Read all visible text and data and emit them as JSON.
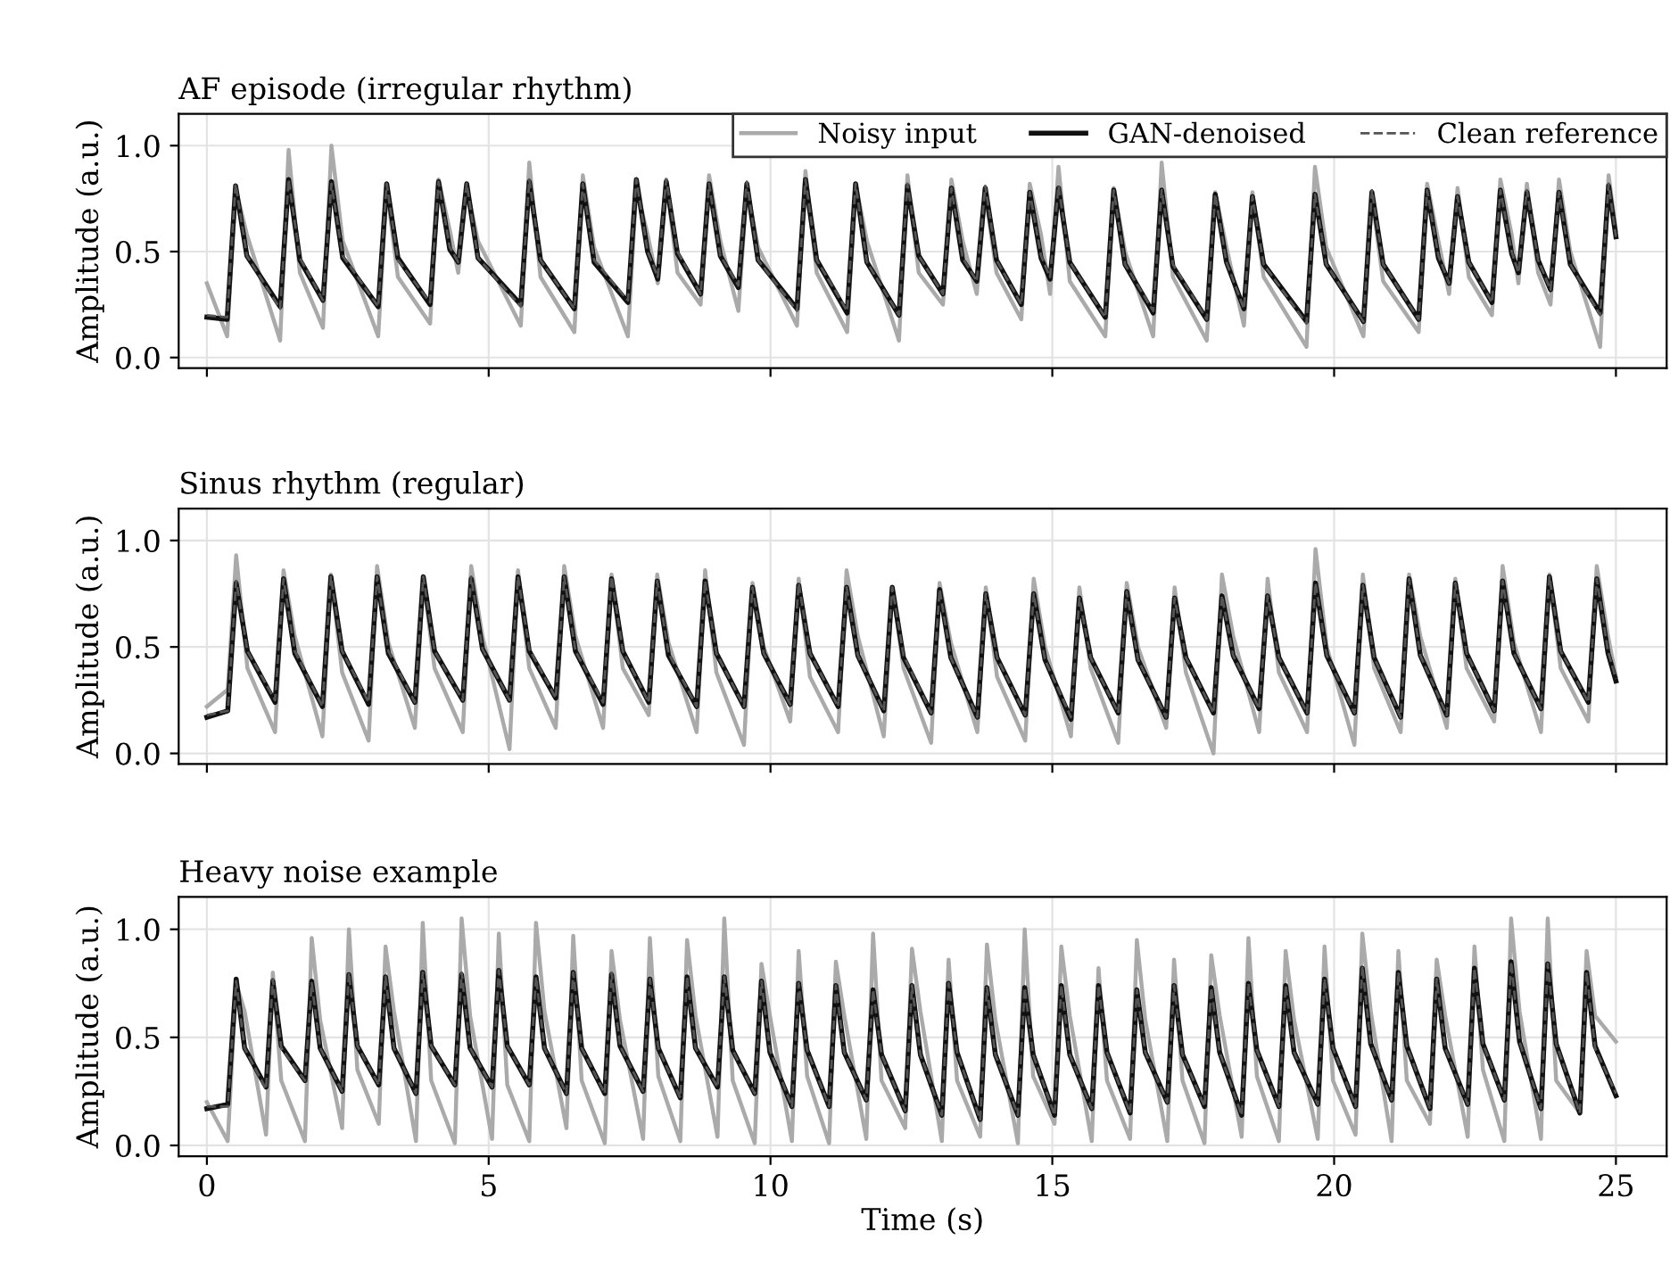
{
  "chart_data": [
    {
      "type": "line",
      "title": "AF episode (irregular rhythm)",
      "ylabel": "Amplitude (a.u.)",
      "xlim": [
        -0.5,
        25.9
      ],
      "ylim": [
        -0.05,
        1.15
      ],
      "xticks": [
        0,
        5,
        10,
        15,
        20,
        25
      ],
      "yticks": [
        {
          "value": 0,
          "label": "0.0"
        },
        {
          "value": 0.5,
          "label": "0.5"
        },
        {
          "value": 1,
          "label": "1.0"
        }
      ],
      "tick_labels": "y",
      "grid": true,
      "legend": "top right",
      "marker": "none",
      "x": [
        0,
        0.36,
        0.51,
        0.71,
        1.3,
        1.45,
        1.65,
        2.06,
        2.21,
        2.41,
        3.04,
        3.19,
        3.39,
        3.96,
        4.11,
        4.31,
        4.46,
        4.61,
        4.81,
        5.57,
        5.72,
        5.92,
        6.52,
        6.67,
        6.87,
        7.47,
        7.62,
        7.82,
        8.0,
        8.15,
        8.35,
        8.76,
        8.91,
        9.11,
        9.43,
        9.58,
        9.78,
        10.47,
        10.62,
        10.82,
        11.36,
        11.51,
        11.71,
        12.28,
        12.43,
        12.63,
        13.06,
        13.21,
        13.41,
        13.66,
        13.81,
        14.01,
        14.45,
        14.6,
        14.8,
        14.96,
        15.11,
        15.31,
        15.94,
        16.09,
        16.29,
        16.79,
        16.94,
        17.14,
        17.74,
        17.89,
        18.09,
        18.4,
        18.55,
        18.75,
        19.51,
        19.66,
        19.86,
        20.52,
        20.67,
        20.87,
        21.5,
        21.65,
        21.85,
        22.04,
        22.19,
        22.39,
        22.8,
        22.95,
        23.15,
        23.27,
        23.42,
        23.62,
        23.84,
        23.99,
        24.19,
        24.72,
        24.87,
        25.0
      ],
      "series": [
        {
          "name": "Noisy input",
          "color": "#aaaaaa",
          "line_style": "solid",
          "values": [
            0.35,
            0.1,
            0.8,
            0.58,
            0.08,
            0.98,
            0.4,
            0.14,
            1.0,
            0.55,
            0.1,
            0.8,
            0.38,
            0.16,
            0.84,
            0.6,
            0.4,
            0.8,
            0.55,
            0.15,
            0.92,
            0.38,
            0.12,
            0.86,
            0.52,
            0.1,
            0.8,
            0.58,
            0.35,
            0.84,
            0.4,
            0.25,
            0.86,
            0.55,
            0.22,
            0.8,
            0.52,
            0.15,
            0.88,
            0.4,
            0.12,
            0.82,
            0.55,
            0.08,
            0.86,
            0.4,
            0.25,
            0.84,
            0.55,
            0.3,
            0.78,
            0.4,
            0.18,
            0.82,
            0.58,
            0.3,
            0.9,
            0.36,
            0.1,
            0.8,
            0.5,
            0.1,
            0.92,
            0.38,
            0.08,
            0.78,
            0.52,
            0.15,
            0.78,
            0.38,
            0.05,
            0.9,
            0.52,
            0.1,
            0.76,
            0.36,
            0.12,
            0.82,
            0.55,
            0.3,
            0.8,
            0.38,
            0.2,
            0.84,
            0.58,
            0.35,
            0.82,
            0.4,
            0.25,
            0.84,
            0.5,
            0.05,
            0.86,
            0.6
          ]
        },
        {
          "name": "GAN-denoised",
          "color": "#111111",
          "line_style": "solid",
          "values": [
            0.19,
            0.18,
            0.81,
            0.48,
            0.24,
            0.84,
            0.46,
            0.27,
            0.83,
            0.47,
            0.24,
            0.82,
            0.47,
            0.25,
            0.83,
            0.51,
            0.45,
            0.82,
            0.47,
            0.25,
            0.83,
            0.46,
            0.23,
            0.82,
            0.45,
            0.26,
            0.84,
            0.5,
            0.37,
            0.83,
            0.49,
            0.3,
            0.82,
            0.48,
            0.33,
            0.82,
            0.46,
            0.23,
            0.84,
            0.46,
            0.21,
            0.82,
            0.45,
            0.2,
            0.81,
            0.48,
            0.3,
            0.8,
            0.46,
            0.36,
            0.8,
            0.46,
            0.25,
            0.78,
            0.47,
            0.37,
            0.8,
            0.45,
            0.19,
            0.79,
            0.44,
            0.21,
            0.79,
            0.43,
            0.18,
            0.77,
            0.45,
            0.23,
            0.76,
            0.44,
            0.17,
            0.77,
            0.44,
            0.17,
            0.78,
            0.44,
            0.18,
            0.79,
            0.47,
            0.35,
            0.76,
            0.45,
            0.26,
            0.79,
            0.49,
            0.4,
            0.78,
            0.46,
            0.32,
            0.78,
            0.44,
            0.21,
            0.81,
            0.57
          ]
        },
        {
          "name": "Clean reference",
          "color": "#555555",
          "line_style": "dashed",
          "values": [
            0.2,
            0.19,
            0.82,
            0.48,
            0.23,
            0.84,
            0.47,
            0.27,
            0.82,
            0.48,
            0.24,
            0.82,
            0.46,
            0.26,
            0.83,
            0.52,
            0.45,
            0.82,
            0.47,
            0.24,
            0.84,
            0.46,
            0.23,
            0.82,
            0.46,
            0.27,
            0.84,
            0.5,
            0.38,
            0.84,
            0.5,
            0.3,
            0.82,
            0.48,
            0.34,
            0.83,
            0.46,
            0.22,
            0.84,
            0.46,
            0.22,
            0.82,
            0.45,
            0.2,
            0.82,
            0.48,
            0.3,
            0.8,
            0.47,
            0.36,
            0.81,
            0.46,
            0.25,
            0.78,
            0.48,
            0.38,
            0.81,
            0.45,
            0.19,
            0.79,
            0.44,
            0.22,
            0.79,
            0.44,
            0.18,
            0.77,
            0.45,
            0.23,
            0.76,
            0.44,
            0.16,
            0.77,
            0.44,
            0.17,
            0.79,
            0.44,
            0.18,
            0.79,
            0.48,
            0.35,
            0.76,
            0.45,
            0.26,
            0.79,
            0.5,
            0.4,
            0.79,
            0.46,
            0.32,
            0.78,
            0.44,
            0.2,
            0.82,
            0.57
          ]
        }
      ]
    },
    {
      "type": "line",
      "title": "Sinus rhythm (regular)",
      "ylabel": "Amplitude (a.u.)",
      "xlim": [
        -0.5,
        25.9
      ],
      "ylim": [
        -0.05,
        1.15
      ],
      "xticks": [
        0,
        5,
        10,
        15,
        20,
        25
      ],
      "yticks": [
        {
          "value": 0,
          "label": "0.0"
        },
        {
          "value": 0.5,
          "label": "0.5"
        },
        {
          "value": 1,
          "label": "1.0"
        }
      ],
      "tick_labels": "y",
      "grid": true,
      "marker": "none",
      "x": [
        0,
        0.37,
        0.52,
        0.72,
        1.21,
        1.36,
        1.56,
        2.05,
        2.2,
        2.4,
        2.87,
        3.02,
        3.22,
        3.69,
        3.84,
        4.04,
        4.54,
        4.69,
        4.89,
        5.37,
        5.52,
        5.72,
        6.19,
        6.34,
        6.54,
        7.03,
        7.18,
        7.38,
        7.84,
        7.99,
        8.19,
        8.69,
        8.84,
        9.04,
        9.53,
        9.68,
        9.88,
        10.35,
        10.5,
        10.7,
        11.2,
        11.35,
        11.55,
        12.01,
        12.16,
        12.36,
        12.85,
        13.0,
        13.2,
        13.67,
        13.82,
        14.02,
        14.52,
        14.67,
        14.87,
        15.33,
        15.48,
        15.68,
        16.17,
        16.32,
        16.52,
        17.02,
        17.17,
        17.37,
        17.86,
        18.01,
        18.21,
        18.67,
        18.82,
        19.02,
        19.52,
        19.67,
        19.87,
        20.36,
        20.51,
        20.71,
        21.18,
        21.33,
        21.53,
        22.0,
        22.15,
        22.35,
        22.84,
        22.99,
        23.19,
        23.67,
        23.82,
        24.02,
        24.51,
        24.66,
        24.86,
        25.0
      ],
      "series": [
        {
          "color": "#aaaaaa",
          "line_style": "solid",
          "values": [
            0.22,
            0.3,
            0.93,
            0.4,
            0.1,
            0.86,
            0.55,
            0.08,
            0.84,
            0.38,
            0.06,
            0.88,
            0.52,
            0.12,
            0.82,
            0.4,
            0.1,
            0.88,
            0.55,
            0.02,
            0.86,
            0.4,
            0.12,
            0.88,
            0.55,
            0.12,
            0.84,
            0.4,
            0.18,
            0.84,
            0.52,
            0.1,
            0.86,
            0.38,
            0.04,
            0.8,
            0.5,
            0.15,
            0.82,
            0.36,
            0.1,
            0.86,
            0.55,
            0.08,
            0.78,
            0.4,
            0.05,
            0.8,
            0.52,
            0.1,
            0.78,
            0.36,
            0.06,
            0.82,
            0.5,
            0.08,
            0.78,
            0.4,
            0.05,
            0.8,
            0.5,
            0.12,
            0.78,
            0.38,
            0.0,
            0.84,
            0.55,
            0.1,
            0.82,
            0.38,
            0.1,
            0.96,
            0.5,
            0.04,
            0.84,
            0.4,
            0.1,
            0.84,
            0.55,
            0.12,
            0.82,
            0.4,
            0.15,
            0.88,
            0.52,
            0.1,
            0.84,
            0.4,
            0.15,
            0.88,
            0.55,
            0.36
          ]
        },
        {
          "color": "#111111",
          "line_style": "solid",
          "values": [
            0.17,
            0.2,
            0.8,
            0.48,
            0.24,
            0.82,
            0.47,
            0.22,
            0.83,
            0.48,
            0.23,
            0.83,
            0.47,
            0.24,
            0.83,
            0.48,
            0.25,
            0.82,
            0.49,
            0.25,
            0.83,
            0.48,
            0.26,
            0.83,
            0.48,
            0.23,
            0.82,
            0.48,
            0.24,
            0.81,
            0.46,
            0.22,
            0.81,
            0.47,
            0.22,
            0.78,
            0.47,
            0.23,
            0.79,
            0.47,
            0.22,
            0.78,
            0.46,
            0.2,
            0.78,
            0.45,
            0.19,
            0.77,
            0.45,
            0.17,
            0.75,
            0.45,
            0.18,
            0.75,
            0.44,
            0.16,
            0.73,
            0.45,
            0.19,
            0.76,
            0.44,
            0.17,
            0.73,
            0.45,
            0.19,
            0.74,
            0.46,
            0.21,
            0.74,
            0.45,
            0.19,
            0.8,
            0.46,
            0.19,
            0.79,
            0.45,
            0.17,
            0.82,
            0.46,
            0.18,
            0.8,
            0.47,
            0.2,
            0.81,
            0.47,
            0.21,
            0.83,
            0.48,
            0.24,
            0.82,
            0.47,
            0.34
          ]
        },
        {
          "color": "#555555",
          "line_style": "dashed",
          "values": [
            0.18,
            0.2,
            0.81,
            0.48,
            0.25,
            0.82,
            0.48,
            0.22,
            0.83,
            0.48,
            0.24,
            0.83,
            0.48,
            0.24,
            0.83,
            0.48,
            0.25,
            0.83,
            0.49,
            0.25,
            0.83,
            0.49,
            0.26,
            0.83,
            0.48,
            0.24,
            0.83,
            0.48,
            0.24,
            0.81,
            0.47,
            0.22,
            0.81,
            0.47,
            0.22,
            0.78,
            0.47,
            0.23,
            0.8,
            0.47,
            0.22,
            0.78,
            0.46,
            0.2,
            0.78,
            0.46,
            0.19,
            0.77,
            0.45,
            0.17,
            0.75,
            0.45,
            0.18,
            0.75,
            0.44,
            0.17,
            0.73,
            0.45,
            0.19,
            0.76,
            0.44,
            0.17,
            0.73,
            0.45,
            0.19,
            0.74,
            0.46,
            0.21,
            0.74,
            0.45,
            0.19,
            0.8,
            0.46,
            0.19,
            0.79,
            0.45,
            0.17,
            0.82,
            0.46,
            0.18,
            0.8,
            0.47,
            0.2,
            0.81,
            0.47,
            0.21,
            0.83,
            0.48,
            0.24,
            0.82,
            0.48,
            0.35
          ]
        }
      ]
    },
    {
      "type": "line",
      "title": "Heavy noise example",
      "xlabel": "Time (s)",
      "ylabel": "Amplitude (a.u.)",
      "xlim": [
        -0.5,
        25.9
      ],
      "ylim": [
        -0.05,
        1.15
      ],
      "xticks": [
        0,
        5,
        10,
        15,
        20,
        25
      ],
      "yticks": [
        {
          "value": 0,
          "label": "0.0"
        },
        {
          "value": 0.5,
          "label": "0.5"
        },
        {
          "value": 1,
          "label": "1.0"
        }
      ],
      "grid": true,
      "marker": "none",
      "x": [
        0,
        0.37,
        0.52,
        0.67,
        1.05,
        1.17,
        1.32,
        1.74,
        1.86,
        2.01,
        2.4,
        2.52,
        2.67,
        3.05,
        3.17,
        3.32,
        3.71,
        3.83,
        3.98,
        4.4,
        4.52,
        4.67,
        5.06,
        5.18,
        5.33,
        5.72,
        5.84,
        5.99,
        6.38,
        6.5,
        6.65,
        7.06,
        7.18,
        7.33,
        7.74,
        7.86,
        8.01,
        8.4,
        8.52,
        8.67,
        9.06,
        9.18,
        9.33,
        9.72,
        9.84,
        9.99,
        10.38,
        10.5,
        10.65,
        11.04,
        11.16,
        11.31,
        11.7,
        11.82,
        11.97,
        12.39,
        12.51,
        12.66,
        13.04,
        13.16,
        13.31,
        13.72,
        13.84,
        13.99,
        14.39,
        14.51,
        14.66,
        15.04,
        15.16,
        15.31,
        15.7,
        15.82,
        15.97,
        16.38,
        16.5,
        16.65,
        17.04,
        17.16,
        17.31,
        17.7,
        17.82,
        17.97,
        18.36,
        18.48,
        18.63,
        19.02,
        19.14,
        19.29,
        19.71,
        19.83,
        19.98,
        20.38,
        20.5,
        20.65,
        21.02,
        21.14,
        21.29,
        21.7,
        21.82,
        21.97,
        22.37,
        22.49,
        22.64,
        23.02,
        23.14,
        23.29,
        23.67,
        23.79,
        23.94,
        24.36,
        24.48,
        24.63,
        25.0
      ],
      "series": [
        {
          "color": "#aaaaaa",
          "line_style": "solid",
          "values": [
            0.2,
            0.02,
            0.75,
            0.62,
            0.05,
            0.8,
            0.3,
            0.02,
            0.96,
            0.58,
            0.08,
            1.0,
            0.35,
            0.1,
            0.92,
            0.62,
            0.02,
            1.03,
            0.3,
            0.01,
            1.05,
            0.6,
            0.03,
            0.98,
            0.28,
            0.02,
            1.03,
            0.62,
            0.08,
            0.97,
            0.3,
            0.01,
            0.9,
            0.58,
            0.03,
            0.96,
            0.32,
            0.02,
            0.95,
            0.6,
            0.04,
            1.05,
            0.3,
            0.01,
            0.84,
            0.6,
            0.02,
            0.9,
            0.32,
            0.01,
            0.85,
            0.6,
            0.03,
            0.98,
            0.3,
            0.08,
            0.91,
            0.62,
            0.02,
            0.86,
            0.3,
            0.04,
            0.93,
            0.58,
            0.01,
            1.0,
            0.32,
            0.1,
            0.92,
            0.6,
            0.02,
            0.82,
            0.3,
            0.03,
            0.95,
            0.58,
            0.02,
            0.86,
            0.3,
            0.01,
            0.88,
            0.6,
            0.04,
            0.96,
            0.32,
            0.02,
            0.9,
            0.58,
            0.03,
            0.92,
            0.3,
            0.05,
            0.98,
            0.62,
            0.02,
            0.9,
            0.3,
            0.1,
            0.86,
            0.6,
            0.04,
            0.92,
            0.35,
            0.02,
            1.05,
            0.62,
            0.03,
            1.05,
            0.3,
            0.15,
            0.9,
            0.6,
            0.48
          ]
        },
        {
          "color": "#111111",
          "line_style": "solid",
          "values": [
            0.17,
            0.19,
            0.77,
            0.45,
            0.27,
            0.76,
            0.46,
            0.3,
            0.76,
            0.45,
            0.25,
            0.79,
            0.46,
            0.28,
            0.78,
            0.45,
            0.24,
            0.8,
            0.46,
            0.28,
            0.79,
            0.45,
            0.27,
            0.81,
            0.46,
            0.28,
            0.78,
            0.45,
            0.24,
            0.8,
            0.45,
            0.24,
            0.79,
            0.46,
            0.25,
            0.77,
            0.45,
            0.22,
            0.78,
            0.45,
            0.27,
            0.78,
            0.44,
            0.24,
            0.76,
            0.43,
            0.18,
            0.75,
            0.44,
            0.18,
            0.74,
            0.43,
            0.21,
            0.72,
            0.42,
            0.16,
            0.74,
            0.42,
            0.14,
            0.75,
            0.43,
            0.12,
            0.73,
            0.42,
            0.14,
            0.73,
            0.42,
            0.14,
            0.74,
            0.42,
            0.17,
            0.74,
            0.43,
            0.15,
            0.72,
            0.43,
            0.2,
            0.74,
            0.42,
            0.18,
            0.73,
            0.43,
            0.14,
            0.75,
            0.44,
            0.18,
            0.74,
            0.43,
            0.19,
            0.77,
            0.45,
            0.18,
            0.82,
            0.47,
            0.21,
            0.8,
            0.46,
            0.17,
            0.77,
            0.45,
            0.19,
            0.82,
            0.47,
            0.21,
            0.85,
            0.48,
            0.17,
            0.84,
            0.47,
            0.15,
            0.8,
            0.46,
            0.23
          ]
        },
        {
          "color": "#555555",
          "line_style": "dashed",
          "values": [
            0.18,
            0.18,
            0.76,
            0.45,
            0.26,
            0.77,
            0.45,
            0.3,
            0.75,
            0.45,
            0.25,
            0.8,
            0.46,
            0.28,
            0.78,
            0.45,
            0.24,
            0.8,
            0.46,
            0.28,
            0.8,
            0.45,
            0.27,
            0.81,
            0.46,
            0.28,
            0.78,
            0.45,
            0.24,
            0.8,
            0.45,
            0.24,
            0.8,
            0.46,
            0.25,
            0.77,
            0.45,
            0.22,
            0.78,
            0.45,
            0.27,
            0.78,
            0.44,
            0.24,
            0.76,
            0.44,
            0.18,
            0.75,
            0.44,
            0.18,
            0.74,
            0.43,
            0.21,
            0.72,
            0.42,
            0.16,
            0.74,
            0.42,
            0.14,
            0.75,
            0.43,
            0.12,
            0.73,
            0.42,
            0.14,
            0.73,
            0.42,
            0.14,
            0.74,
            0.42,
            0.17,
            0.74,
            0.43,
            0.15,
            0.72,
            0.43,
            0.2,
            0.74,
            0.42,
            0.18,
            0.73,
            0.43,
            0.14,
            0.75,
            0.44,
            0.18,
            0.74,
            0.43,
            0.19,
            0.77,
            0.45,
            0.18,
            0.83,
            0.47,
            0.21,
            0.8,
            0.46,
            0.17,
            0.77,
            0.45,
            0.19,
            0.82,
            0.47,
            0.21,
            0.85,
            0.48,
            0.17,
            0.84,
            0.47,
            0.15,
            0.8,
            0.45,
            0.24
          ]
        }
      ]
    }
  ]
}
